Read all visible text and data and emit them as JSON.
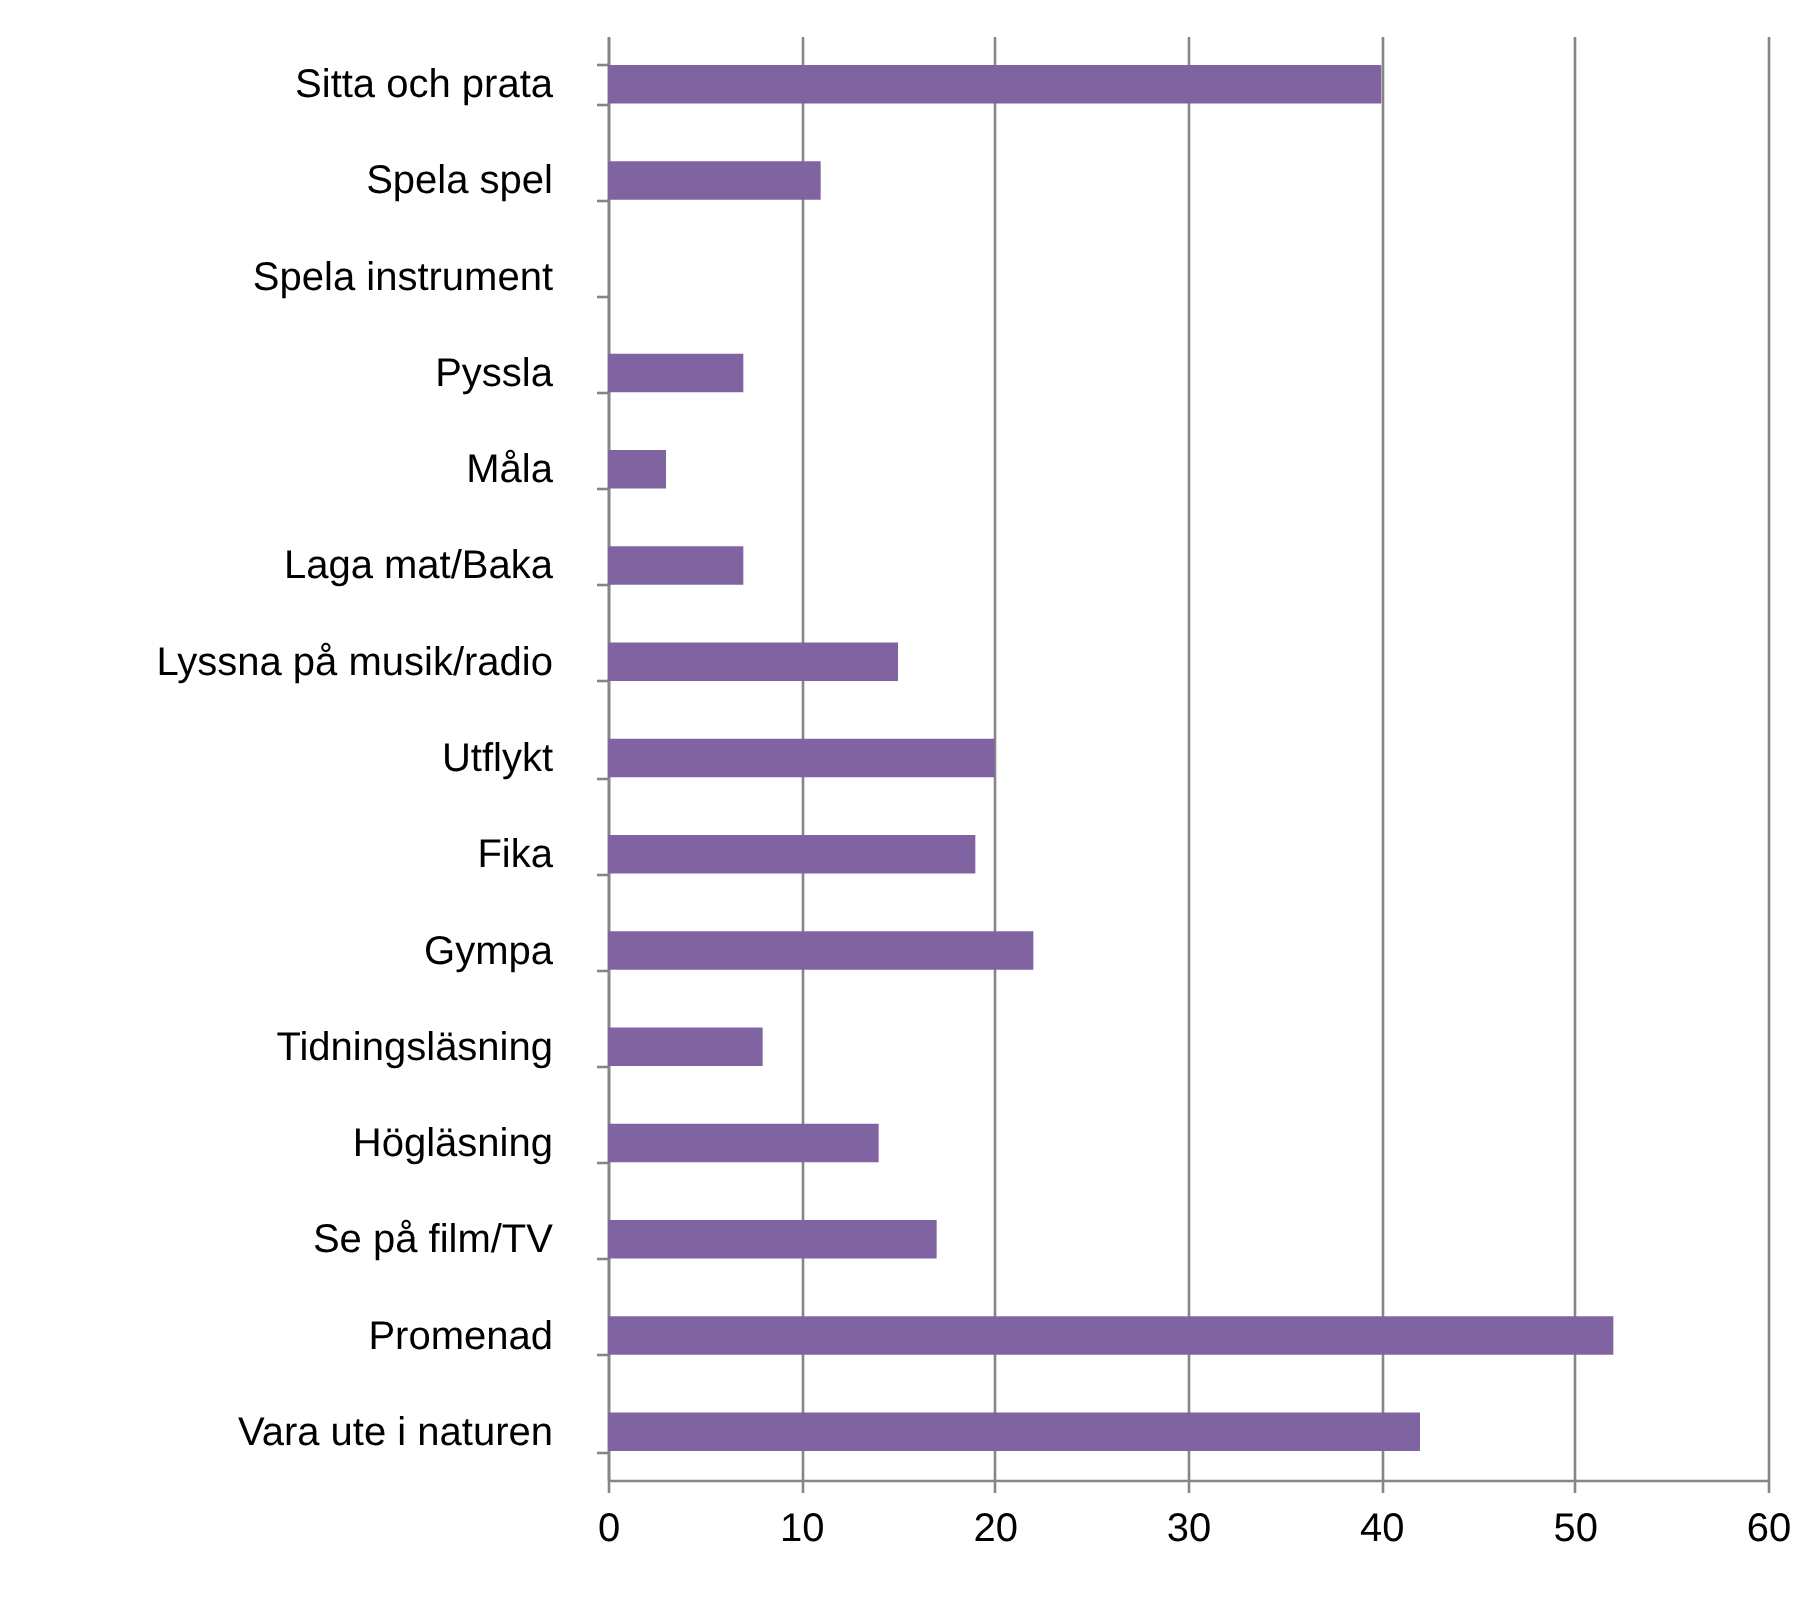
{
  "chart_data": {
    "type": "bar",
    "orientation": "horizontal",
    "categories": [
      "Sitta och prata",
      "Spela spel",
      "Spela instrument",
      "Pyssla",
      "Måla",
      "Laga mat/Baka",
      "Lyssna på musik/radio",
      "Utflykt",
      "Fika",
      "Gympa",
      "Tidningsläsning",
      "Högläsning",
      "Se på film/TV",
      "Promenad",
      "Vara ute i naturen"
    ],
    "values": [
      40,
      11,
      0,
      7,
      3,
      7,
      15,
      20,
      19,
      22,
      8,
      14,
      17,
      52,
      42
    ],
    "color": "#8064a2",
    "xlim": [
      0,
      60
    ],
    "xticks": [
      0,
      10,
      20,
      30,
      40,
      50,
      60
    ],
    "grid": "x"
  }
}
